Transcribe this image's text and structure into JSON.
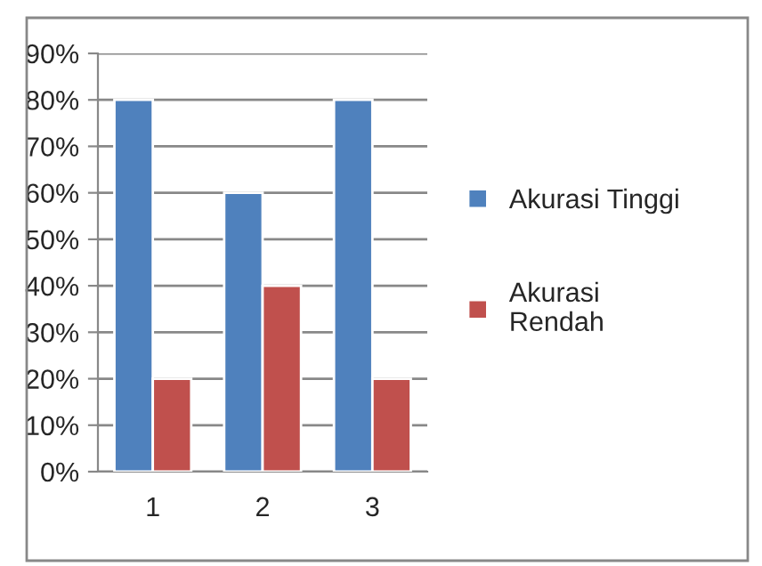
{
  "chart_data": {
    "type": "bar",
    "categories": [
      "1",
      "2",
      "3"
    ],
    "series": [
      {
        "name": "Akurasi Tinggi",
        "color": "#4f81bd",
        "values": [
          80,
          60,
          80
        ]
      },
      {
        "name": "Akurasi\nRendah",
        "color": "#c0504d",
        "values": [
          20,
          40,
          20
        ]
      }
    ],
    "ylim": [
      0,
      90
    ],
    "yticks": [
      {
        "value": 0,
        "label": "0%"
      },
      {
        "value": 10,
        "label": "10%"
      },
      {
        "value": 20,
        "label": "20%"
      },
      {
        "value": 30,
        "label": "30%"
      },
      {
        "value": 40,
        "label": "40%"
      },
      {
        "value": 50,
        "label": "50%"
      },
      {
        "value": 60,
        "label": "60%"
      },
      {
        "value": 70,
        "label": "70%"
      },
      {
        "value": 80,
        "label": "80%"
      },
      {
        "value": 90,
        "label": "90%"
      }
    ],
    "grid": "y",
    "legend": "right"
  }
}
